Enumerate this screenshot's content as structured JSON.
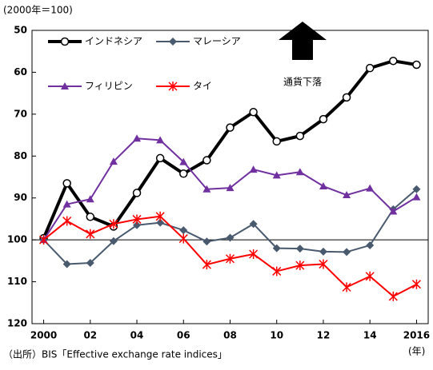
{
  "chart_data": {
    "type": "line",
    "y_unit_label": "(2000年＝100)",
    "x_unit_label": "(年)",
    "source": "（出所）BIS「Effective exchange rate indices」",
    "annotation": "通貨下落",
    "x": [
      2000,
      2001,
      2002,
      2003,
      2004,
      2005,
      2006,
      2007,
      2008,
      2009,
      2010,
      2011,
      2012,
      2013,
      2014,
      2015,
      2016
    ],
    "xlim": [
      1999.5,
      2016.5
    ],
    "xticks": [
      2000,
      {
        "value": 2002,
        "label": "02"
      },
      {
        "value": 2004,
        "label": "04"
      },
      {
        "value": 2006,
        "label": "06"
      },
      {
        "value": 2008,
        "label": "08"
      },
      {
        "value": 2010,
        "label": "10"
      },
      {
        "value": 2012,
        "label": "12"
      },
      {
        "value": 2014,
        "label": "14"
      },
      2016
    ],
    "ylim": [
      50,
      120
    ],
    "y_inverted": true,
    "yticks": [
      50,
      60,
      70,
      80,
      90,
      100,
      110,
      120
    ],
    "reference_line": 100,
    "series": [
      {
        "name": "インドネシア",
        "color": "#000000",
        "marker": "circle",
        "values": [
          99.6,
          86.5,
          94.5,
          96.8,
          88.8,
          80.5,
          84.2,
          81,
          73.2,
          69.5,
          76.5,
          75.2,
          71.2,
          66,
          59,
          57.3,
          58.2
        ]
      },
      {
        "name": "マレーシア",
        "color": "#4a5a6e",
        "marker": "diamond",
        "values": [
          100,
          105.8,
          105.5,
          100.3,
          96.5,
          95.9,
          97.7,
          100.4,
          99.5,
          96.2,
          102,
          102.1,
          102.8,
          102.9,
          101.3,
          92.7,
          87.9
        ]
      },
      {
        "name": "フィリピン",
        "color": "#7030a0",
        "marker": "triangle",
        "values": [
          100,
          91.5,
          90.3,
          81.3,
          75.8,
          76.2,
          81.4,
          87.9,
          87.6,
          83.2,
          84.6,
          83.8,
          87.2,
          89.3,
          87.7,
          93.2,
          89.8
        ]
      },
      {
        "name": "タイ",
        "color": "#ff0000",
        "marker": "asterisk",
        "values": [
          100,
          95.5,
          98.6,
          96.2,
          95.1,
          94.4,
          99.7,
          105.9,
          104.5,
          103.4,
          107.5,
          106.1,
          105.8,
          111.3,
          108.7,
          113.5,
          110.6
        ]
      }
    ]
  }
}
